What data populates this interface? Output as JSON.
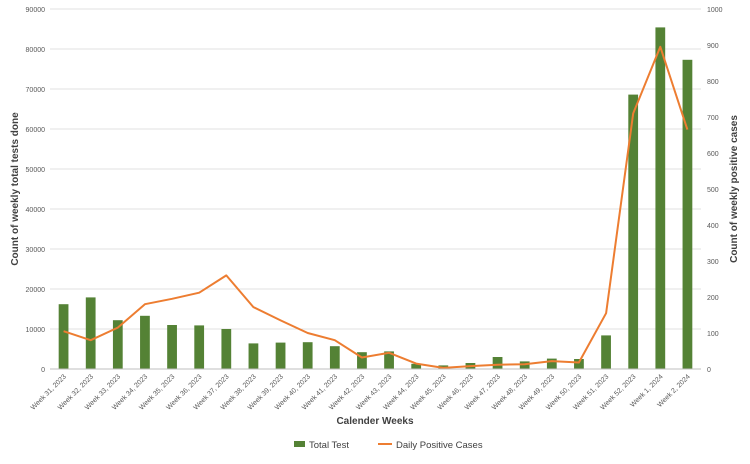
{
  "chart_data": {
    "type": "bar",
    "categories": [
      "Week 31, 2023",
      "Week 32, 2023",
      "Week 33, 2023",
      "Week 34, 2023",
      "Week 35, 2023",
      "Week 36, 2023",
      "Week 37, 2023",
      "Week 38, 2023",
      "Week 39, 2023",
      "Week 40, 2023",
      "Week 41, 2023",
      "Week 42, 2023",
      "Week 43, 2023",
      "Week 44, 2023",
      "Week 45, 2023",
      "Week 46, 2023",
      "Week 47, 2023",
      "Week 48, 2023",
      "Week 49, 2023",
      "Week 50, 2023",
      "Week 51, 2023",
      "Week 52, 2023",
      "Week 1, 2024",
      "Week 2, 2024"
    ],
    "series": [
      {
        "name": "Total Test",
        "type": "bar",
        "axis": "left",
        "color": "#548235",
        "values": [
          16200,
          17900,
          12200,
          13300,
          11000,
          10900,
          10000,
          6400,
          6600,
          6700,
          5700,
          4200,
          4400,
          1300,
          900,
          1500,
          3000,
          1900,
          2600,
          2500,
          8400,
          68600,
          85400,
          77300
        ]
      },
      {
        "name": "Daily Positive Cases",
        "type": "line",
        "axis": "right",
        "color": "#ED7D31",
        "values": [
          105,
          80,
          115,
          180,
          195,
          212,
          260,
          172,
          135,
          100,
          80,
          32,
          45,
          15,
          3,
          8,
          12,
          13,
          22,
          18,
          155,
          710,
          895,
          665
        ]
      }
    ],
    "xlabel": "Calender Weeks",
    "ylabel": "Count of weekly total tests done",
    "y2label": "Count of weekly positive cases",
    "ylim": [
      0,
      90000
    ],
    "y2lim": [
      0,
      1000
    ],
    "yticks": [
      "0",
      "10000",
      "20000",
      "30000",
      "40000",
      "50000",
      "60000",
      "70000",
      "80000",
      "90000"
    ],
    "y2ticks": [
      "0",
      "100",
      "200",
      "300",
      "400",
      "500",
      "600",
      "700",
      "800",
      "900",
      "1000"
    ],
    "grid": true,
    "legend_position": "bottom"
  }
}
